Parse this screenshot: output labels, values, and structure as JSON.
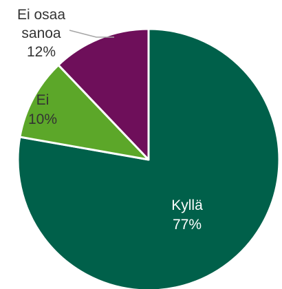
{
  "chart_data": {
    "type": "pie",
    "categories": [
      "Kyllä",
      "Ei",
      "Ei osaa sanoa"
    ],
    "values": [
      77,
      10,
      12
    ],
    "value_labels": [
      "77%",
      "10%",
      "12%"
    ],
    "label_lines": [
      [
        "Kyllä",
        "77%"
      ],
      [
        "Ei",
        "10%"
      ],
      [
        "Ei osaa",
        "sanoa",
        "12%"
      ]
    ],
    "colors": [
      "#00604A",
      "#5CA729",
      "#6E0F5A"
    ],
    "label_colors": [
      "#ffffff",
      "#333333",
      "#333333"
    ],
    "start_angle": "12 o'clock",
    "direction": "clockwise",
    "legend": "none"
  }
}
